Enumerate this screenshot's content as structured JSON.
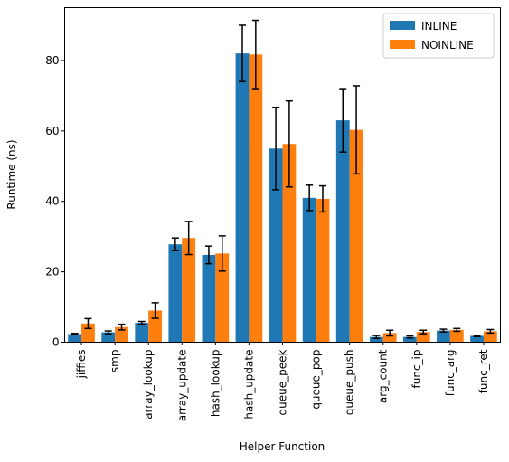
{
  "chart_data": {
    "type": "bar",
    "xlabel": "Helper Function",
    "ylabel": "Runtime (ns)",
    "ylim": [
      0,
      95
    ],
    "yticks": [
      0,
      20,
      40,
      60,
      80
    ],
    "grid": false,
    "legend_position": "top-right",
    "categories": [
      "jiffies",
      "smp",
      "array_lookup",
      "array_update",
      "hash_lookup",
      "hash_update",
      "queue_peek",
      "queue_pop",
      "queue_push",
      "arg_count",
      "func_ip",
      "func_arg",
      "func_ret"
    ],
    "series": [
      {
        "name": "INLINE",
        "color": "#1f77b4",
        "values": [
          2.3,
          2.8,
          5.5,
          27.8,
          24.8,
          82.0,
          55.0,
          41.0,
          63.0,
          1.5,
          1.5,
          3.3,
          1.8
        ],
        "errors": [
          0.2,
          0.4,
          0.4,
          1.8,
          2.5,
          8.0,
          11.7,
          3.6,
          9.0,
          0.4,
          0.3,
          0.4,
          0.2
        ]
      },
      {
        "name": "NOINLINE",
        "color": "#ff7f0e",
        "values": [
          5.3,
          4.3,
          9.0,
          29.6,
          25.2,
          81.7,
          56.3,
          40.7,
          60.3,
          2.6,
          2.9,
          3.5,
          3.1
        ],
        "errors": [
          1.4,
          0.8,
          2.2,
          4.7,
          5.0,
          9.7,
          12.2,
          3.7,
          12.5,
          0.8,
          0.5,
          0.4,
          0.5
        ]
      }
    ]
  }
}
